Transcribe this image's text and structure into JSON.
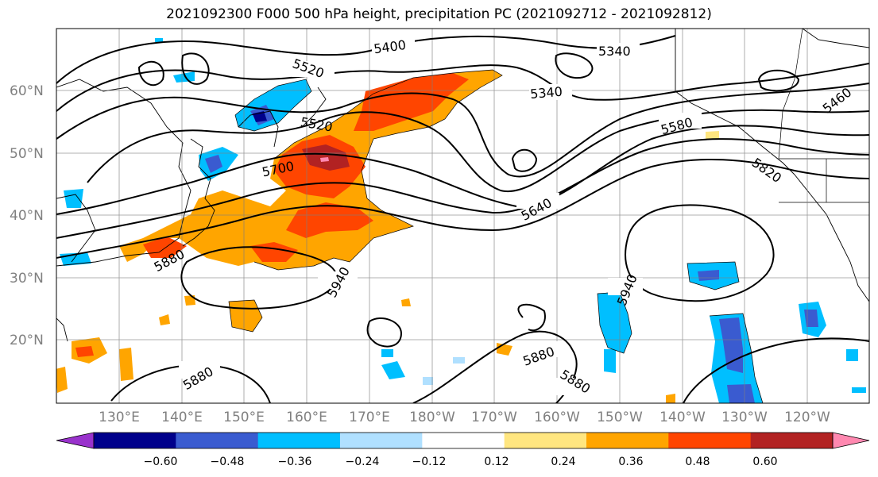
{
  "title": "2021092300 F000 500 hPa height, precipitation PC (2021092712 - 2021092812)",
  "lat_labels": [
    "60°N",
    "50°N",
    "40°N",
    "30°N",
    "20°N"
  ],
  "lon_labels": [
    "130°E",
    "140°E",
    "150°E",
    "160°E",
    "170°E",
    "180°W",
    "170°W",
    "160°W",
    "150°W",
    "140°W",
    "130°W",
    "120°W"
  ],
  "contour_labels": [
    "5400",
    "5340",
    "5520",
    "5340",
    "5520",
    "5580",
    "5460",
    "5700",
    "5820",
    "5640",
    "5880",
    "5940",
    "5940",
    "5880",
    "5880",
    "5880"
  ],
  "colorbar": {
    "colors": [
      "#9932cc",
      "#00008b",
      "#3a5bd0",
      "#00bfff",
      "#b0e0ff",
      "#ffffff",
      "#ffe680",
      "#ffa500",
      "#ff4500",
      "#b22222",
      "#ff88b0"
    ],
    "tick_labels": [
      "−0.60",
      "−0.48",
      "−0.36",
      "−0.24",
      "−0.12",
      "0.12",
      "0.24",
      "0.36",
      "0.48",
      "0.60"
    ]
  }
}
